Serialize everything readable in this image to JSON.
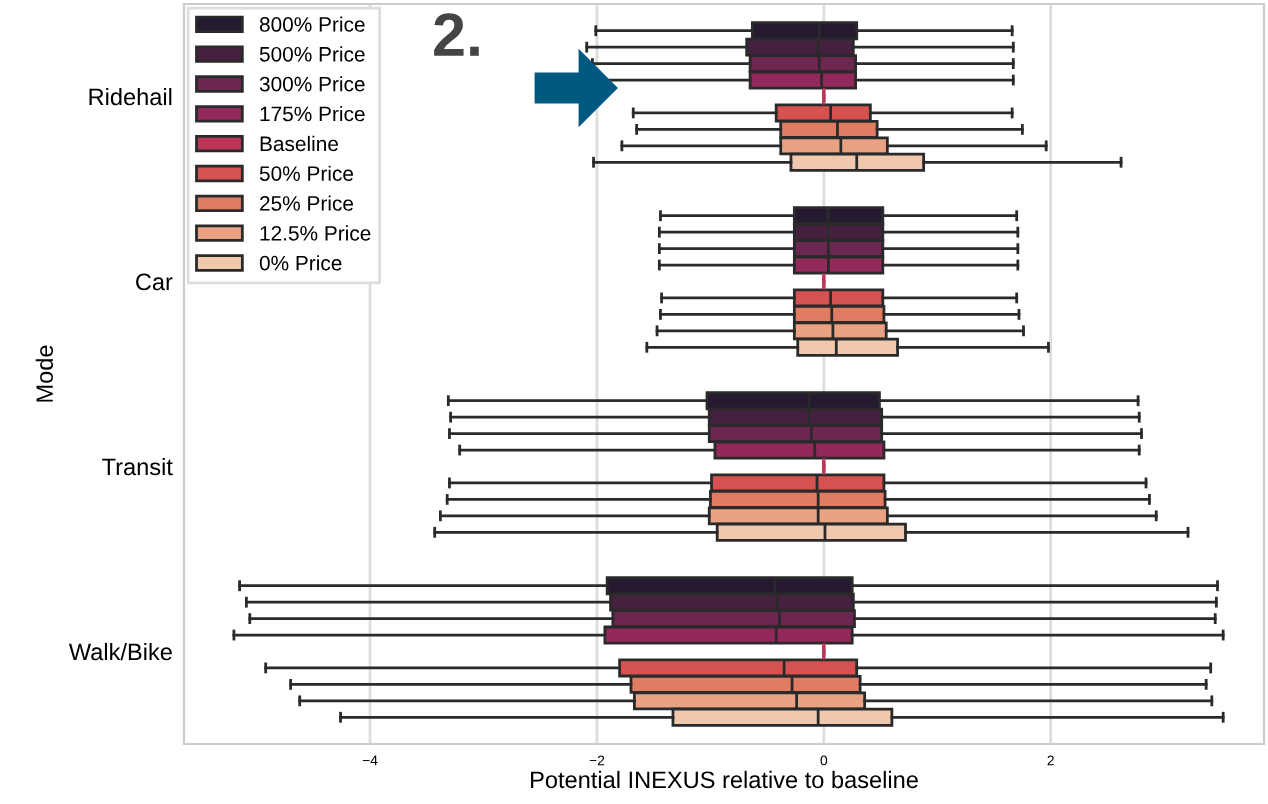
{
  "chart_data": {
    "type": "box",
    "orientation": "horizontal",
    "xlabel": "Potential INEXUS relative to baseline",
    "ylabel": "Mode",
    "categories": [
      "Ridehail",
      "Car",
      "Transit",
      "Walk/Bike"
    ],
    "xlim": [
      -5.64,
      3.88
    ],
    "xticks": [
      {
        "value": -4,
        "label": "−4"
      },
      {
        "value": -2,
        "label": "−2"
      },
      0,
      2
    ],
    "grid": "x",
    "legend": "top left",
    "annotations": [
      "2."
    ],
    "series": [
      {
        "name": "800% Price",
        "color": "#251a30",
        "boxes": [
          {
            "low": -2.01,
            "q1": -0.63,
            "median": -0.04,
            "q3": 0.29,
            "high": 1.66
          },
          {
            "low": -1.44,
            "q1": -0.26,
            "median": 0.04,
            "q3": 0.52,
            "high": 1.7
          },
          {
            "low": -3.31,
            "q1": -1.03,
            "median": -0.13,
            "q3": 0.49,
            "high": 2.77
          },
          {
            "low": -5.15,
            "q1": -1.91,
            "median": -0.43,
            "q3": 0.25,
            "high": 3.47
          }
        ]
      },
      {
        "name": "500% Price",
        "color": "#45213f",
        "boxes": [
          {
            "low": -2.09,
            "q1": -0.68,
            "median": -0.05,
            "q3": 0.26,
            "high": 1.67
          },
          {
            "low": -1.45,
            "q1": -0.26,
            "median": 0.04,
            "q3": 0.52,
            "high": 1.71
          },
          {
            "low": -3.29,
            "q1": -1.01,
            "median": -0.13,
            "q3": 0.51,
            "high": 2.78
          },
          {
            "low": -5.09,
            "q1": -1.88,
            "median": -0.41,
            "q3": 0.26,
            "high": 3.46
          }
        ]
      },
      {
        "name": "300% Price",
        "color": "#6b2750",
        "boxes": [
          {
            "low": -2.04,
            "q1": -0.65,
            "median": -0.04,
            "q3": 0.28,
            "high": 1.67
          },
          {
            "low": -1.45,
            "q1": -0.26,
            "median": 0.04,
            "q3": 0.52,
            "high": 1.71
          },
          {
            "low": -3.3,
            "q1": -1.01,
            "median": -0.11,
            "q3": 0.51,
            "high": 2.8
          },
          {
            "low": -5.06,
            "q1": -1.86,
            "median": -0.39,
            "q3": 0.27,
            "high": 3.45
          }
        ]
      },
      {
        "name": "175% Price",
        "color": "#92295a",
        "boxes": [
          {
            "low": -2.04,
            "q1": -0.65,
            "median": -0.02,
            "q3": 0.28,
            "high": 1.67
          },
          {
            "low": -1.45,
            "q1": -0.26,
            "median": 0.04,
            "q3": 0.52,
            "high": 1.71
          },
          {
            "low": -3.21,
            "q1": -0.96,
            "median": -0.08,
            "q3": 0.53,
            "high": 2.78
          },
          {
            "low": -5.2,
            "q1": -1.93,
            "median": -0.42,
            "q3": 0.25,
            "high": 3.52
          }
        ]
      },
      {
        "name": "Baseline",
        "color": "#be3358",
        "boxes": [
          {
            "low": 0,
            "q1": 0,
            "median": 0,
            "q3": 0,
            "high": 0
          },
          {
            "low": 0,
            "q1": 0,
            "median": 0,
            "q3": 0,
            "high": 0
          },
          {
            "low": 0,
            "q1": 0,
            "median": 0,
            "q3": 0,
            "high": 0
          },
          {
            "low": 0,
            "q1": 0,
            "median": 0,
            "q3": 0,
            "high": 0
          }
        ]
      },
      {
        "name": "50% Price",
        "color": "#d55251",
        "boxes": [
          {
            "low": -1.68,
            "q1": -0.42,
            "median": 0.06,
            "q3": 0.41,
            "high": 1.66
          },
          {
            "low": -1.43,
            "q1": -0.26,
            "median": 0.06,
            "q3": 0.52,
            "high": 1.7
          },
          {
            "low": -3.3,
            "q1": -0.99,
            "median": -0.06,
            "q3": 0.53,
            "high": 2.84
          },
          {
            "low": -4.92,
            "q1": -1.8,
            "median": -0.35,
            "q3": 0.29,
            "high": 3.41
          }
        ]
      },
      {
        "name": "25% Price",
        "color": "#e07c62",
        "boxes": [
          {
            "low": -1.65,
            "q1": -0.38,
            "median": 0.12,
            "q3": 0.47,
            "high": 1.75
          },
          {
            "low": -1.44,
            "q1": -0.26,
            "median": 0.07,
            "q3": 0.53,
            "high": 1.72
          },
          {
            "low": -3.32,
            "q1": -1.0,
            "median": -0.05,
            "q3": 0.54,
            "high": 2.87
          },
          {
            "low": -4.7,
            "q1": -1.7,
            "median": -0.28,
            "q3": 0.32,
            "high": 3.37
          }
        ]
      },
      {
        "name": "12.5% Price",
        "color": "#e9a282",
        "boxes": [
          {
            "low": -1.78,
            "q1": -0.38,
            "median": 0.15,
            "q3": 0.56,
            "high": 1.96
          },
          {
            "low": -1.47,
            "q1": -0.26,
            "median": 0.08,
            "q3": 0.55,
            "high": 1.76
          },
          {
            "low": -3.38,
            "q1": -1.01,
            "median": -0.05,
            "q3": 0.56,
            "high": 2.93
          },
          {
            "low": -4.62,
            "q1": -1.67,
            "median": -0.24,
            "q3": 0.36,
            "high": 3.42
          }
        ]
      },
      {
        "name": "0% Price",
        "color": "#f0c8ad",
        "boxes": [
          {
            "low": -2.03,
            "q1": -0.29,
            "median": 0.29,
            "q3": 0.88,
            "high": 2.62
          },
          {
            "low": -1.56,
            "q1": -0.23,
            "median": 0.11,
            "q3": 0.65,
            "high": 1.98
          },
          {
            "low": -3.43,
            "q1": -0.94,
            "median": 0.01,
            "q3": 0.72,
            "high": 3.21
          },
          {
            "low": -4.26,
            "q1": -1.33,
            "median": -0.05,
            "q3": 0.6,
            "high": 3.52
          }
        ]
      }
    ]
  }
}
